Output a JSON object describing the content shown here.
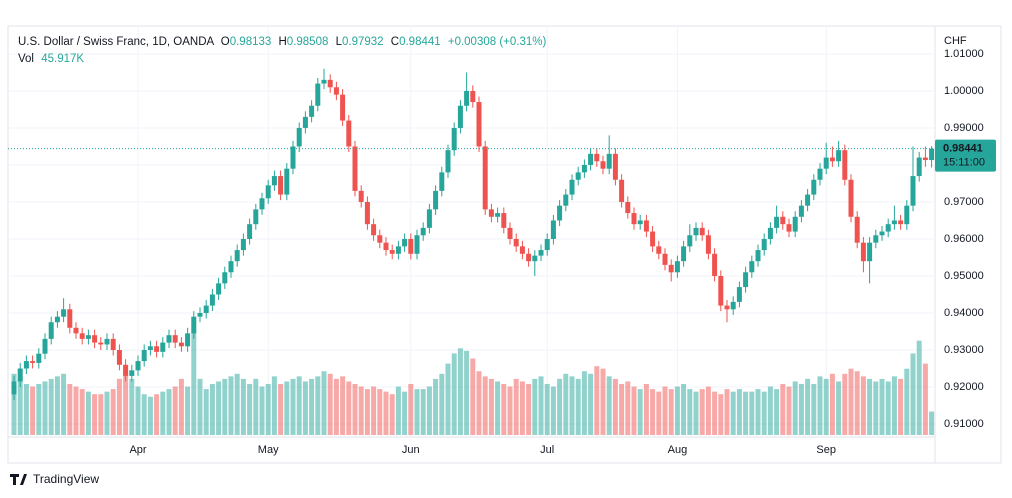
{
  "chart_data": {
    "type": "candlestick",
    "title": "U.S. Dollar / Swiss Franc, 1D, OANDA",
    "o_label": "O",
    "h_label": "H",
    "l_label": "L",
    "c_label": "C",
    "change_label": "+0.00308 (+0.31%)",
    "volume_name": "Vol",
    "last_volume_label": "45.917K",
    "y_axis_label": "CHF",
    "countdown": "15:11:00",
    "brand": "TradingView",
    "up_color": "#26a69a",
    "down_color": "#ef5350",
    "grid": true,
    "ylim": [
      0.9075,
      1.0135
    ],
    "yticks": [
      {
        "value": 0.91,
        "label": "0.91000"
      },
      {
        "value": 0.92,
        "label": "0.92000"
      },
      {
        "value": 0.93,
        "label": "0.93000"
      },
      {
        "value": 0.94,
        "label": "0.94000"
      },
      {
        "value": 0.95,
        "label": "0.95000"
      },
      {
        "value": 0.96,
        "label": "0.96000"
      },
      {
        "value": 0.97,
        "label": "0.97000"
      },
      {
        "value": 0.98,
        "label": "0.98000"
      },
      {
        "value": 0.99,
        "label": "0.99000"
      },
      {
        "value": 1.0,
        "label": "1.00000"
      },
      {
        "value": 1.01,
        "label": "1.01000"
      }
    ],
    "categories": [
      null,
      null,
      null,
      null,
      null,
      null,
      null,
      null,
      null,
      null,
      null,
      null,
      null,
      null,
      null,
      null,
      null,
      null,
      null,
      null,
      "Apr",
      null,
      null,
      null,
      null,
      null,
      null,
      null,
      null,
      null,
      null,
      null,
      null,
      null,
      null,
      null,
      null,
      null,
      null,
      null,
      null,
      "May",
      null,
      null,
      null,
      null,
      null,
      null,
      null,
      null,
      null,
      null,
      null,
      null,
      null,
      null,
      null,
      null,
      null,
      null,
      null,
      null,
      null,
      null,
      "Jun",
      null,
      null,
      null,
      null,
      null,
      null,
      null,
      null,
      null,
      null,
      null,
      null,
      null,
      null,
      null,
      null,
      null,
      null,
      null,
      null,
      null,
      "Jul",
      null,
      null,
      null,
      null,
      null,
      null,
      null,
      null,
      null,
      null,
      null,
      null,
      null,
      null,
      null,
      null,
      null,
      null,
      null,
      null,
      "Aug",
      null,
      null,
      null,
      null,
      null,
      null,
      null,
      null,
      null,
      null,
      null,
      null,
      null,
      null,
      null,
      null,
      null,
      null,
      null,
      null,
      null,
      null,
      null,
      "Sep",
      null,
      null,
      null,
      null,
      null,
      null,
      null,
      null,
      null,
      null,
      null,
      null,
      null,
      null,
      null,
      null,
      null
    ],
    "open": [
      0.918,
      0.9215,
      0.925,
      0.927,
      0.9265,
      0.929,
      0.933,
      0.9375,
      0.939,
      0.941,
      0.936,
      0.9345,
      0.933,
      0.934,
      0.932,
      0.9315,
      0.933,
      0.93,
      0.926,
      0.923,
      0.9245,
      0.927,
      0.93,
      0.931,
      0.9295,
      0.932,
      0.934,
      0.932,
      0.931,
      0.9345,
      0.939,
      0.94,
      0.942,
      0.945,
      0.948,
      0.951,
      0.954,
      0.957,
      0.96,
      0.964,
      0.968,
      0.971,
      0.9745,
      0.977,
      0.972,
      0.979,
      0.985,
      0.99,
      0.993,
      0.996,
      1.002,
      1.003,
      1.001,
      0.999,
      0.992,
      0.985,
      0.973,
      0.97,
      0.964,
      0.961,
      0.959,
      0.957,
      0.956,
      0.958,
      0.96,
      0.956,
      0.961,
      0.963,
      0.968,
      0.973,
      0.978,
      0.984,
      0.99,
      0.996,
      1.0,
      0.997,
      0.985,
      0.968,
      0.966,
      0.967,
      0.963,
      0.96,
      0.958,
      0.956,
      0.954,
      0.9555,
      0.957,
      0.96,
      0.965,
      0.969,
      0.972,
      0.976,
      0.978,
      0.98,
      0.983,
      0.981,
      0.979,
      0.983,
      0.976,
      0.97,
      0.967,
      0.964,
      0.965,
      0.962,
      0.958,
      0.956,
      0.953,
      0.951,
      0.954,
      0.958,
      0.961,
      0.963,
      0.961,
      0.956,
      0.95,
      0.942,
      0.941,
      0.943,
      0.947,
      0.951,
      0.954,
      0.957,
      0.96,
      0.963,
      0.966,
      0.964,
      0.962,
      0.966,
      0.969,
      0.972,
      0.976,
      0.979,
      0.982,
      0.981,
      0.984,
      0.976,
      0.966,
      0.959,
      0.954,
      0.959,
      0.961,
      0.962,
      0.964,
      0.965,
      0.964,
      0.969,
      0.977,
      0.982,
      0.98133
    ],
    "high": [
      0.923,
      0.9265,
      0.9285,
      0.9285,
      0.9305,
      0.9345,
      0.939,
      0.9405,
      0.944,
      0.9425,
      0.9375,
      0.936,
      0.9355,
      0.9355,
      0.9335,
      0.9345,
      0.9345,
      0.9315,
      0.9275,
      0.926,
      0.9285,
      0.9315,
      0.9325,
      0.9325,
      0.9335,
      0.9355,
      0.9355,
      0.9335,
      0.936,
      0.9405,
      0.9415,
      0.9435,
      0.9465,
      0.9495,
      0.9525,
      0.9555,
      0.9585,
      0.9615,
      0.9655,
      0.9695,
      0.9725,
      0.976,
      0.9785,
      0.9785,
      0.9805,
      0.9865,
      0.9915,
      0.9945,
      0.9975,
      1.0035,
      1.006,
      1.0045,
      1.0025,
      1.0005,
      0.9935,
      0.9865,
      0.9745,
      0.9715,
      0.9655,
      0.9625,
      0.9605,
      0.9585,
      0.9595,
      0.9615,
      0.9615,
      0.9625,
      0.9645,
      0.9695,
      0.9745,
      0.9795,
      0.9855,
      0.9915,
      0.9975,
      1.005,
      1.0015,
      0.9985,
      0.9865,
      0.9695,
      0.9685,
      0.9685,
      0.9645,
      0.9615,
      0.9595,
      0.9575,
      0.957,
      0.9585,
      0.9615,
      0.9665,
      0.9705,
      0.9735,
      0.9775,
      0.9795,
      0.9815,
      0.9845,
      0.9845,
      0.9825,
      0.988,
      0.9845,
      0.9775,
      0.9715,
      0.9685,
      0.9665,
      0.9665,
      0.9635,
      0.9595,
      0.9575,
      0.9545,
      0.9555,
      0.9595,
      0.964,
      0.9645,
      0.9645,
      0.9625,
      0.9575,
      0.9515,
      0.9435,
      0.9445,
      0.9485,
      0.9525,
      0.9555,
      0.9585,
      0.9615,
      0.9645,
      0.969,
      0.9675,
      0.9655,
      0.9675,
      0.9705,
      0.9735,
      0.9775,
      0.9805,
      0.986,
      0.985,
      0.9865,
      0.9855,
      0.9775,
      0.9675,
      0.9605,
      0.9605,
      0.9625,
      0.9635,
      0.9655,
      0.969,
      0.9665,
      0.9705,
      0.985,
      0.9835,
      0.985,
      0.98508
    ],
    "low": [
      0.9165,
      0.92,
      0.9235,
      0.925,
      0.925,
      0.9275,
      0.9315,
      0.936,
      0.9375,
      0.9345,
      0.933,
      0.9315,
      0.9315,
      0.9305,
      0.93,
      0.93,
      0.9285,
      0.9245,
      0.9215,
      0.9215,
      0.923,
      0.9255,
      0.9285,
      0.928,
      0.928,
      0.9305,
      0.9305,
      0.9295,
      0.9295,
      0.933,
      0.9375,
      0.9385,
      0.9405,
      0.9435,
      0.9465,
      0.9495,
      0.9525,
      0.9555,
      0.9585,
      0.9625,
      0.9665,
      0.9695,
      0.973,
      0.9705,
      0.9705,
      0.9775,
      0.9835,
      0.9885,
      0.9915,
      0.9945,
      1.0005,
      0.9995,
      0.9975,
      0.9905,
      0.9835,
      0.9715,
      0.9685,
      0.9625,
      0.9595,
      0.9575,
      0.9555,
      0.9545,
      0.9545,
      0.9565,
      0.9545,
      0.9545,
      0.9595,
      0.9615,
      0.9665,
      0.9715,
      0.9765,
      0.9825,
      0.9885,
      0.9945,
      0.9955,
      0.9835,
      0.9665,
      0.9645,
      0.9645,
      0.9615,
      0.9585,
      0.9565,
      0.9545,
      0.9525,
      0.95,
      0.954,
      0.9555,
      0.9585,
      0.9635,
      0.9675,
      0.9705,
      0.9745,
      0.9765,
      0.9785,
      0.9795,
      0.9775,
      0.9775,
      0.9745,
      0.9685,
      0.9655,
      0.9625,
      0.9625,
      0.9605,
      0.9565,
      0.9545,
      0.9515,
      0.9485,
      0.9495,
      0.9525,
      0.9565,
      0.9595,
      0.9595,
      0.9545,
      0.9485,
      0.9405,
      0.9375,
      0.9395,
      0.9415,
      0.9455,
      0.9495,
      0.9525,
      0.9555,
      0.9585,
      0.9615,
      0.9625,
      0.9605,
      0.9605,
      0.9645,
      0.9675,
      0.9705,
      0.9745,
      0.9775,
      0.9795,
      0.9795,
      0.9745,
      0.9645,
      0.9575,
      0.951,
      0.948,
      0.9575,
      0.9595,
      0.9605,
      0.9625,
      0.9625,
      0.9625,
      0.9675,
      0.9755,
      0.9795,
      0.97932
    ],
    "close": [
      0.9215,
      0.925,
      0.927,
      0.9265,
      0.929,
      0.933,
      0.9375,
      0.939,
      0.941,
      0.936,
      0.9345,
      0.933,
      0.934,
      0.932,
      0.9315,
      0.933,
      0.93,
      0.926,
      0.923,
      0.9245,
      0.927,
      0.93,
      0.931,
      0.9295,
      0.932,
      0.934,
      0.932,
      0.931,
      0.9345,
      0.939,
      0.94,
      0.942,
      0.945,
      0.948,
      0.951,
      0.954,
      0.957,
      0.96,
      0.964,
      0.968,
      0.971,
      0.9745,
      0.977,
      0.972,
      0.979,
      0.985,
      0.99,
      0.993,
      0.996,
      1.002,
      1.003,
      1.001,
      0.999,
      0.992,
      0.985,
      0.973,
      0.97,
      0.964,
      0.961,
      0.959,
      0.957,
      0.956,
      0.958,
      0.96,
      0.956,
      0.961,
      0.963,
      0.968,
      0.973,
      0.978,
      0.984,
      0.99,
      0.996,
      1.0,
      0.997,
      0.985,
      0.968,
      0.966,
      0.967,
      0.963,
      0.96,
      0.958,
      0.956,
      0.954,
      0.9555,
      0.957,
      0.96,
      0.965,
      0.969,
      0.972,
      0.976,
      0.978,
      0.98,
      0.983,
      0.981,
      0.979,
      0.983,
      0.976,
      0.97,
      0.967,
      0.964,
      0.965,
      0.962,
      0.958,
      0.956,
      0.953,
      0.951,
      0.954,
      0.958,
      0.961,
      0.963,
      0.961,
      0.956,
      0.95,
      0.942,
      0.941,
      0.943,
      0.947,
      0.951,
      0.954,
      0.957,
      0.96,
      0.963,
      0.966,
      0.964,
      0.962,
      0.966,
      0.969,
      0.972,
      0.976,
      0.979,
      0.982,
      0.981,
      0.984,
      0.976,
      0.966,
      0.959,
      0.954,
      0.959,
      0.961,
      0.962,
      0.964,
      0.965,
      0.964,
      0.969,
      0.977,
      0.982,
      0.98133,
      0.98441
    ],
    "volume": [
      120,
      110,
      100,
      95,
      100,
      105,
      110,
      115,
      120,
      100,
      95,
      90,
      85,
      80,
      80,
      85,
      90,
      110,
      120,
      110,
      95,
      80,
      75,
      80,
      85,
      90,
      95,
      110,
      95,
      200,
      110,
      90,
      100,
      105,
      110,
      115,
      120,
      110,
      100,
      110,
      95,
      100,
      115,
      100,
      105,
      110,
      115,
      105,
      110,
      115,
      125,
      120,
      110,
      115,
      105,
      100,
      95,
      90,
      95,
      90,
      85,
      80,
      95,
      85,
      100,
      90,
      90,
      95,
      110,
      120,
      140,
      160,
      170,
      165,
      150,
      125,
      115,
      110,
      105,
      100,
      95,
      110,
      105,
      100,
      110,
      115,
      100,
      95,
      110,
      120,
      115,
      110,
      125,
      120,
      135,
      130,
      115,
      110,
      100,
      105,
      95,
      90,
      100,
      90,
      85,
      95,
      90,
      95,
      100,
      90,
      85,
      90,
      95,
      85,
      80,
      90,
      85,
      90,
      85,
      85,
      90,
      85,
      95,
      90,
      100,
      95,
      105,
      100,
      110,
      100,
      115,
      110,
      120,
      105,
      120,
      130,
      125,
      115,
      110,
      105,
      110,
      105,
      115,
      110,
      130,
      160,
      185,
      140,
      45.917
    ]
  }
}
